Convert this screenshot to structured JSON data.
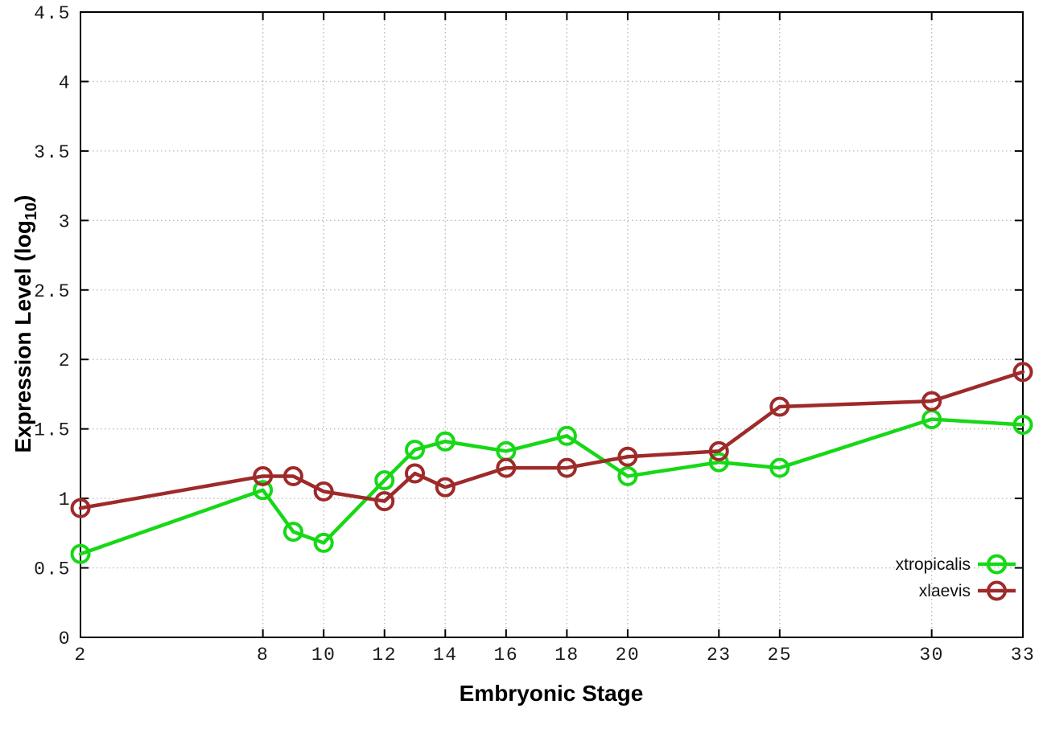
{
  "chart_data": {
    "type": "line",
    "x": [
      2,
      8,
      9,
      10,
      12,
      13,
      14,
      16,
      18,
      20,
      23,
      25,
      30,
      33
    ],
    "series": [
      {
        "name": "xtropicalis",
        "color": "#17d817",
        "marker": "open-circle",
        "values": [
          0.6,
          1.06,
          0.76,
          0.68,
          1.13,
          1.35,
          1.41,
          1.34,
          1.45,
          1.16,
          1.26,
          1.22,
          1.57,
          1.53
        ]
      },
      {
        "name": "xlaevis",
        "color": "#9e2a2a",
        "marker": "open-circle",
        "values": [
          0.93,
          1.16,
          1.16,
          1.05,
          0.98,
          1.18,
          1.08,
          1.22,
          1.22,
          1.3,
          1.34,
          1.66,
          1.7,
          1.91
        ]
      }
    ],
    "title": "",
    "xlabel": "Embryonic Stage",
    "ylabel": "Expression Level (log10)",
    "ylabel_parts": {
      "main": "Expression Level (log",
      "sub": "10",
      "end": ")"
    },
    "xlim": [
      2,
      33
    ],
    "ylim": [
      0,
      4.5
    ],
    "x_ticks": [
      2,
      8,
      10,
      12,
      14,
      16,
      18,
      20,
      23,
      25,
      30,
      33
    ],
    "y_ticks": [
      0,
      0.5,
      1,
      1.5,
      2,
      2.5,
      3,
      3.5,
      4,
      4.5
    ],
    "grid": true,
    "grid_style": "dotted",
    "legend_position": "bottom-right",
    "colors": {
      "background": "#ffffff",
      "border": "#000000",
      "grid": "#b8b8b8",
      "tick": "#000000",
      "text": "#1a1a1a"
    }
  }
}
